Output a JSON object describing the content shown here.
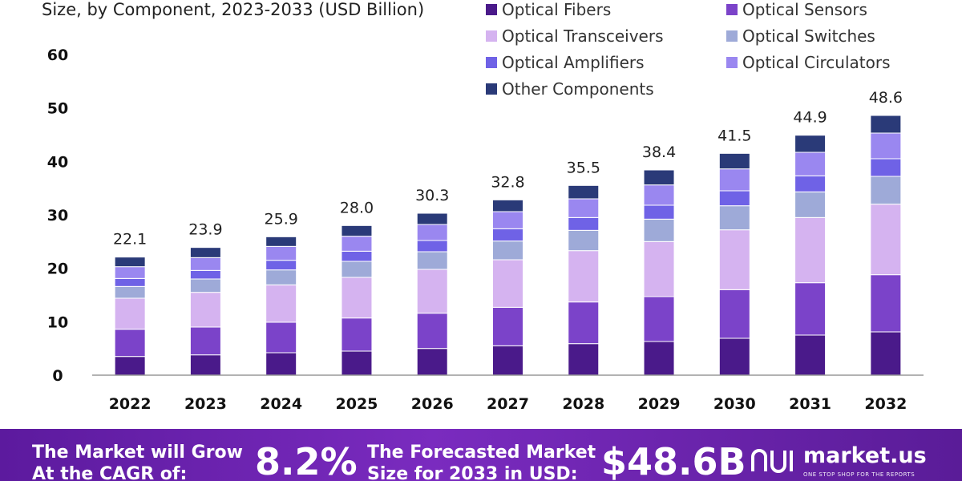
{
  "header": {
    "subtitle": "Size, by Component, 2023-2033 (USD Billion)"
  },
  "chart_data": {
    "type": "bar",
    "stacked": true,
    "categories": [
      "2022",
      "2023",
      "2024",
      "2025",
      "2026",
      "2027",
      "2028",
      "2029",
      "2030",
      "2031",
      "2032"
    ],
    "totals": [
      "22.1",
      "23.9",
      "25.9",
      "28.0",
      "30.3",
      "32.8",
      "35.5",
      "38.4",
      "41.5",
      "44.9",
      "48.6"
    ],
    "ylim": [
      0,
      60
    ],
    "yticks": [
      "0",
      "10",
      "20",
      "30",
      "40",
      "50",
      "60"
    ],
    "grid": false,
    "legend_position": "top-right",
    "series": [
      {
        "name": "Optical Fibers",
        "color": "#4a1a8a",
        "values": [
          3.5,
          3.8,
          4.2,
          4.5,
          5.0,
          5.5,
          5.9,
          6.3,
          6.9,
          7.5,
          8.1
        ]
      },
      {
        "name": "Optical Sensors",
        "color": "#7b43c9",
        "values": [
          5.1,
          5.2,
          5.7,
          6.2,
          6.6,
          7.2,
          7.8,
          8.4,
          9.1,
          9.8,
          10.7
        ]
      },
      {
        "name": "Optical Transceivers",
        "color": "#d5b3f0",
        "values": [
          5.8,
          6.5,
          7.0,
          7.6,
          8.2,
          8.9,
          9.6,
          10.3,
          11.2,
          12.2,
          13.2
        ]
      },
      {
        "name": "Optical Switches",
        "color": "#9eaad8",
        "values": [
          2.2,
          2.5,
          2.8,
          3.0,
          3.3,
          3.5,
          3.8,
          4.2,
          4.5,
          4.8,
          5.2
        ]
      },
      {
        "name": "Optical Amplifiers",
        "color": "#6f62e6",
        "values": [
          1.5,
          1.6,
          1.8,
          1.9,
          2.1,
          2.3,
          2.4,
          2.6,
          2.8,
          3.0,
          3.3
        ]
      },
      {
        "name": "Optical Circulators",
        "color": "#9a87f0",
        "values": [
          2.2,
          2.4,
          2.6,
          2.8,
          3.0,
          3.2,
          3.5,
          3.8,
          4.1,
          4.4,
          4.8
        ]
      },
      {
        "name": "Other Components",
        "color": "#2a3a78",
        "values": [
          1.8,
          1.9,
          1.8,
          2.0,
          2.1,
          2.2,
          2.5,
          2.8,
          2.9,
          3.2,
          3.3
        ]
      }
    ]
  },
  "banner": {
    "cagr_text_1": "The Market will Grow",
    "cagr_text_2": "At the CAGR of:",
    "cagr_value": "8.2%",
    "forecast_text_1": "The Forecasted Market",
    "forecast_text_2": "Size for 2033 in USD:",
    "forecast_value": "$48.6B",
    "brand_name": "market.us",
    "brand_tagline": "ONE STOP SHOP FOR THE REPORTS"
  }
}
